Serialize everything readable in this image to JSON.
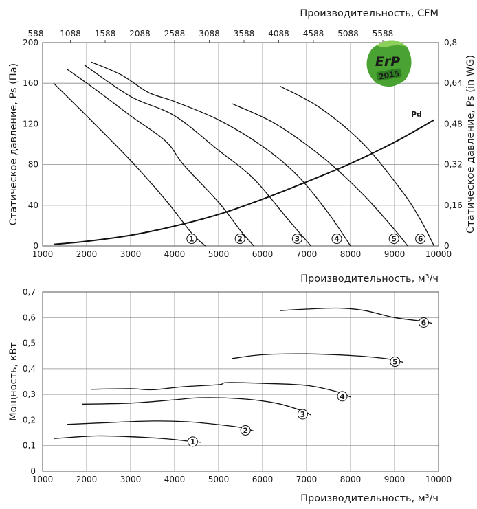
{
  "badge": {
    "line1": "ErP",
    "line2": "2015",
    "color": "#4aa232"
  },
  "chart_data": [
    {
      "type": "line",
      "title": "",
      "xlabel": "Производительность, м³/ч",
      "x_top_label": "Производительность, CFM",
      "ylabel": "Статическое давление, Ps (Па)",
      "y_right_label": "Статическое давление, Ps (in WG)",
      "xlim": [
        1000,
        10000
      ],
      "ylim": [
        0,
        200
      ],
      "grid": true,
      "x_ticks": [
        "1000",
        "2000",
        "3000",
        "4000",
        "5000",
        "6000",
        "7000",
        "8000",
        "9000",
        "10000"
      ],
      "x_top_ticks": [
        "588",
        "1088",
        "1588",
        "2088",
        "2588",
        "3088",
        "3588",
        "4088",
        "4588",
        "5088",
        "5588"
      ],
      "y_ticks": [
        "0",
        "40",
        "80",
        "120",
        "160",
        "200"
      ],
      "y_right_ticks": [
        "0",
        "0,16",
        "0,32",
        "0,48",
        "0,64",
        "0,8"
      ],
      "series": [
        {
          "name": "1",
          "x": [
            1250,
            2000,
            3000,
            3800,
            4400,
            4700
          ],
          "y": [
            160,
            128,
            84,
            45,
            12,
            0
          ]
        },
        {
          "name": "2",
          "x": [
            1550,
            2200,
            3000,
            3800,
            4200,
            5000,
            5500,
            5800
          ],
          "y": [
            174,
            154,
            128,
            103,
            80,
            43,
            15,
            0
          ]
        },
        {
          "name": "3",
          "x": [
            1950,
            3000,
            4000,
            5000,
            5800,
            6600,
            7100
          ],
          "y": [
            178,
            147,
            128,
            94,
            66,
            25,
            0
          ]
        },
        {
          "name": "4",
          "x": [
            2100,
            2800,
            3400,
            4000,
            5000,
            6000,
            6800,
            7500,
            8000
          ],
          "y": [
            181,
            168,
            151,
            142,
            124,
            98,
            69,
            32,
            0
          ]
        },
        {
          "name": "5",
          "x": [
            5300,
            6300,
            7400,
            8300,
            9000,
            9300
          ],
          "y": [
            140,
            120,
            86,
            50,
            16,
            0
          ]
        },
        {
          "name": "6",
          "x": [
            6400,
            7300,
            8300,
            9200,
            9600,
            9900
          ],
          "y": [
            157,
            136,
            100,
            52,
            25,
            0
          ]
        },
        {
          "name": "Pd",
          "x": [
            1250,
            2000,
            3000,
            4000,
            5000,
            6000,
            7000,
            8000,
            9000,
            9900
          ],
          "y": [
            1.5,
            4.5,
            10.5,
            19.5,
            31,
            46,
            63,
            81,
            102,
            124
          ]
        }
      ]
    },
    {
      "type": "line",
      "title": "",
      "xlabel": "Производительность, м³/ч",
      "ylabel": "Мощность, кВт",
      "xlim": [
        1000,
        10000
      ],
      "ylim": [
        0,
        0.7
      ],
      "grid": true,
      "x_ticks": [
        "1000",
        "2000",
        "3000",
        "4000",
        "5000",
        "6000",
        "7000",
        "8000",
        "9000",
        "10000"
      ],
      "y_ticks": [
        "0",
        "0,1",
        "0,2",
        "0,3",
        "0,4",
        "0,5",
        "0,6",
        "0,7"
      ],
      "series": [
        {
          "name": "1",
          "x": [
            1250,
            2200,
            3000,
            3800,
            4300,
            4600
          ],
          "y": [
            0.128,
            0.138,
            0.135,
            0.127,
            0.118,
            0.113
          ]
        },
        {
          "name": "2",
          "x": [
            1550,
            2500,
            3500,
            4300,
            5000,
            5500,
            5800
          ],
          "y": [
            0.183,
            0.19,
            0.196,
            0.193,
            0.182,
            0.171,
            0.157
          ]
        },
        {
          "name": "3",
          "x": [
            1900,
            3000,
            4000,
            4600,
            5500,
            6300,
            6900,
            7100
          ],
          "y": [
            0.262,
            0.266,
            0.279,
            0.287,
            0.283,
            0.266,
            0.236,
            0.22
          ]
        },
        {
          "name": "4",
          "x": [
            2100,
            3000,
            3500,
            4200,
            5000,
            5200,
            6000,
            7000,
            7700,
            8000
          ],
          "y": [
            0.32,
            0.322,
            0.318,
            0.33,
            0.338,
            0.346,
            0.343,
            0.335,
            0.31,
            0.29
          ]
        },
        {
          "name": "5",
          "x": [
            5300,
            6000,
            7000,
            8000,
            8800,
            9200
          ],
          "y": [
            0.44,
            0.455,
            0.458,
            0.452,
            0.44,
            0.425
          ]
        },
        {
          "name": "6",
          "x": [
            6400,
            7000,
            7700,
            8300,
            9000,
            9600,
            9850
          ],
          "y": [
            0.627,
            0.633,
            0.637,
            0.628,
            0.6,
            0.586,
            0.578
          ]
        }
      ]
    }
  ]
}
